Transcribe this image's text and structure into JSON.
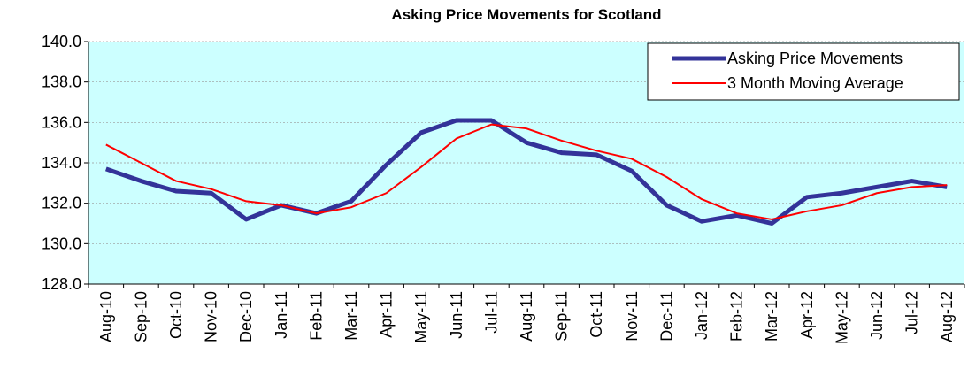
{
  "chart_data": {
    "type": "line",
    "title": "Asking Price Movements for Scotland",
    "categories": [
      "Aug-10",
      "Sep-10",
      "Oct-10",
      "Nov-10",
      "Dec-10",
      "Jan-11",
      "Feb-11",
      "Mar-11",
      "Apr-11",
      "May-11",
      "Jun-11",
      "Jul-11",
      "Aug-11",
      "Sep-11",
      "Oct-11",
      "Nov-11",
      "Dec-11",
      "Jan-12",
      "Feb-12",
      "Mar-12",
      "Apr-12",
      "May-12",
      "Jun-12",
      "Jul-12",
      "Aug-12"
    ],
    "series": [
      {
        "name": "Asking Price Movements",
        "color": "#333399",
        "values": [
          133.7,
          133.1,
          132.6,
          132.5,
          131.2,
          131.9,
          131.5,
          132.1,
          133.9,
          135.5,
          136.1,
          136.1,
          135.0,
          134.5,
          134.4,
          133.6,
          131.9,
          131.1,
          131.4,
          131.0,
          132.3,
          132.5,
          132.8,
          133.1,
          132.8
        ]
      },
      {
        "name": "3 Month Moving Average",
        "color": "#ff0000",
        "values": [
          134.9,
          134.0,
          133.1,
          132.7,
          132.1,
          131.9,
          131.5,
          131.8,
          132.5,
          133.8,
          135.2,
          135.9,
          135.7,
          135.1,
          134.6,
          134.2,
          133.3,
          132.2,
          131.5,
          131.2,
          131.6,
          131.9,
          132.5,
          132.8,
          132.9
        ]
      }
    ],
    "ylim": [
      128,
      140
    ],
    "yticks": [
      {
        "value": 128,
        "label": "128.0"
      },
      {
        "value": 130,
        "label": "130.0"
      },
      {
        "value": 132,
        "label": "132.0"
      },
      {
        "value": 134,
        "label": "134.0"
      },
      {
        "value": 136,
        "label": "136.0"
      },
      {
        "value": 138,
        "label": "138.0"
      },
      {
        "value": 140,
        "label": "140.0"
      }
    ],
    "grid": true,
    "legend": "top-right",
    "background": "#ccffff"
  }
}
